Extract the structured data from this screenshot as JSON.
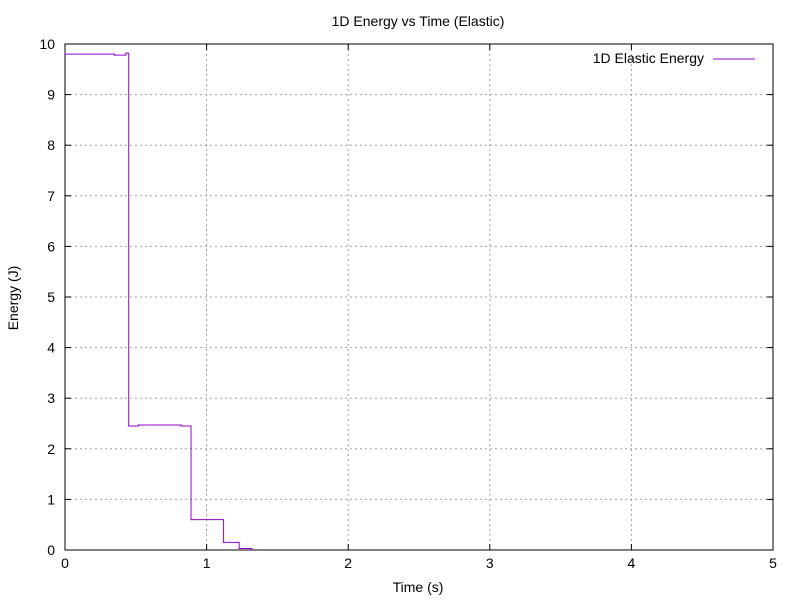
{
  "chart_data": {
    "type": "line",
    "title": "1D Energy vs Time (Elastic)",
    "xlabel": "Time (s)",
    "ylabel": "Energy (J)",
    "xlim": [
      0,
      5
    ],
    "ylim": [
      0,
      10
    ],
    "xticks": [
      0,
      1,
      2,
      3,
      4,
      5
    ],
    "yticks": [
      0,
      1,
      2,
      3,
      4,
      5,
      6,
      7,
      8,
      9,
      10
    ],
    "grid": true,
    "legend_position": "top-right",
    "series": [
      {
        "name": "1D Elastic Energy",
        "color": "#9400d3",
        "step": true,
        "x": [
          0.0,
          0.35,
          0.43,
          0.45,
          0.5,
          0.52,
          0.82,
          0.89,
          1.12,
          1.23,
          1.32
        ],
        "y": [
          9.8,
          9.78,
          9.82,
          2.45,
          2.45,
          2.47,
          2.45,
          0.6,
          0.15,
          0.03,
          0.0
        ]
      }
    ]
  }
}
